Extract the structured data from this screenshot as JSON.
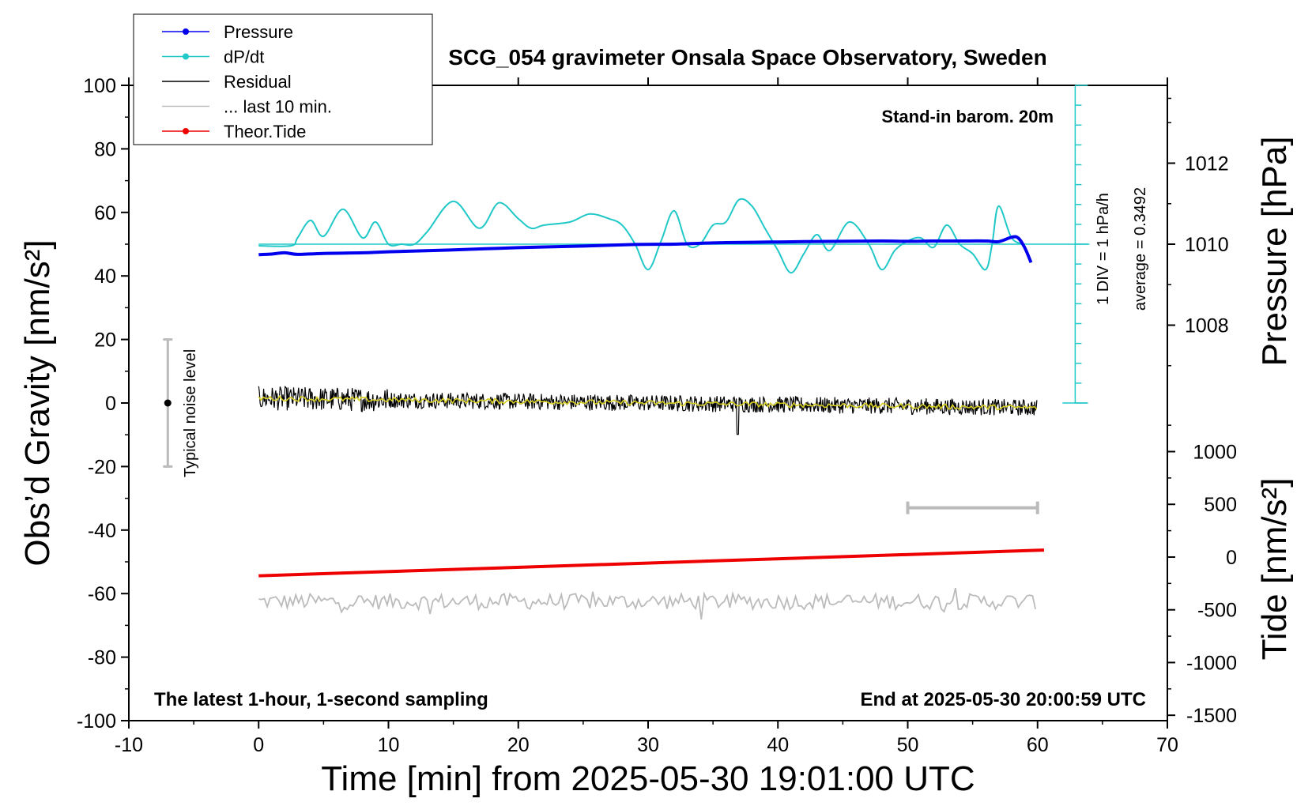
{
  "chart_data": {
    "type": "line",
    "title": "SCG_054 gravimeter Onsala Space Observatory, Sweden",
    "xlabel": "Time [min] from 2025-05-30 19:01:00 UTC",
    "ylabel_left": "Obs’d Gravity [nm/s²]",
    "ylabel_pressure": "Pressure [hPa]",
    "ylabel_tide": "Tide [nm/s²]",
    "xlim": [
      -10,
      70
    ],
    "ylim": [
      -100,
      100
    ],
    "x_ticks": [
      "-10",
      "0",
      "10",
      "20",
      "30",
      "40",
      "50",
      "60",
      "70"
    ],
    "y_ticks": [
      "-100",
      "-80",
      "-60",
      "-40",
      "-20",
      "0",
      "20",
      "40",
      "60",
      "80",
      "100"
    ],
    "pressure_axis": {
      "ticks": [
        1012,
        1010,
        1008
      ],
      "labels": [
        "1012",
        "1010",
        "1008"
      ]
    },
    "tide_axis": {
      "ticks": [
        1000,
        500,
        0,
        -500,
        -1000,
        -1500
      ],
      "labels": [
        "1000",
        "500",
        "0",
        "-500",
        "-1000",
        "-1500"
      ]
    },
    "legend": {
      "position": "top-left",
      "entries": [
        {
          "label": "Pressure",
          "color": "#0000ee",
          "marker": true
        },
        {
          "label": "dP/dt",
          "color": "#20c8c8",
          "marker": true
        },
        {
          "label": "Residual",
          "color": "#000000",
          "marker": false
        },
        {
          "label": "... last 10 min.",
          "color": "#bbbbbb",
          "marker": false
        },
        {
          "label": "Theor.Tide",
          "color": "#ee0000",
          "marker": true
        }
      ]
    },
    "annotations": {
      "barometer": "Stand-in barom. 20m",
      "scale_div": "1 DIV = 1 hPa/h",
      "average": "average = 0.3492",
      "noise": "Typical noise level",
      "bottom_left": "The latest 1-hour, 1-second sampling",
      "bottom_right": "End at 2025-05-30 20:00:59 UTC"
    },
    "noise_bar": {
      "x": -7,
      "y_range": [
        -20,
        20
      ]
    },
    "last10_bar": {
      "x_range": [
        50,
        60
      ],
      "y": -33
    },
    "dpdt_reference_level": 50,
    "series": [
      {
        "name": "Pressure",
        "color": "#0000ee",
        "x": [
          0,
          1,
          2,
          3,
          5,
          8,
          10,
          15,
          20,
          25,
          29,
          32,
          35,
          38,
          40,
          42,
          45,
          48,
          50,
          52,
          54,
          56,
          57,
          58,
          58.5,
          59,
          59.5
        ],
        "y": [
          46.7,
          46.9,
          47.3,
          46.8,
          47.1,
          47.3,
          47.6,
          48.2,
          48.9,
          49.4,
          49.9,
          50.0,
          50.4,
          50.6,
          50.7,
          50.8,
          50.9,
          51.0,
          50.9,
          51.0,
          51.0,
          51.0,
          50.8,
          52.2,
          52.0,
          49.0,
          44.2
        ]
      },
      {
        "name": "dP/dt",
        "color": "#20c8c8",
        "x": [
          0,
          2.5,
          3,
          4,
          5,
          6.5,
          8,
          9,
          10,
          11,
          12,
          13,
          15,
          17,
          18.5,
          20,
          21,
          22,
          24,
          25.5,
          27,
          28,
          29,
          30,
          31,
          32,
          33,
          34,
          35,
          36,
          37,
          38,
          39,
          40,
          41,
          42,
          43,
          44,
          45.5,
          47,
          48,
          49,
          50,
          51,
          52,
          53,
          54,
          55,
          56,
          56.5,
          57,
          58,
          59
        ],
        "y": [
          49.5,
          49.5,
          52,
          57.5,
          52.5,
          61,
          52,
          57,
          50,
          50,
          50,
          54,
          63.5,
          55,
          63,
          58,
          55,
          56,
          57,
          59.5,
          58,
          56,
          50,
          42,
          51,
          60.5,
          50,
          50,
          56,
          57,
          64,
          62,
          55,
          48,
          41,
          47,
          53,
          48,
          57,
          50,
          42,
          48,
          51,
          52,
          49,
          56,
          50,
          47,
          42,
          50,
          62,
          52,
          50
        ]
      },
      {
        "name": "Residual",
        "color": "#000000",
        "x_range": [
          0,
          60
        ],
        "y_start": 1.5,
        "y_end": -1.5,
        "noise_amplitude": 3
      },
      {
        "name": "... last 10 min.",
        "color": "#bbbbbb",
        "x_range": [
          0,
          60
        ],
        "y_center": -62.5,
        "noise_amplitude": 2.5
      },
      {
        "name": "Theor.Tide",
        "color": "#ee0000",
        "x": [
          0,
          60.5
        ],
        "y": [
          -54.4,
          -46.3
        ]
      }
    ]
  }
}
